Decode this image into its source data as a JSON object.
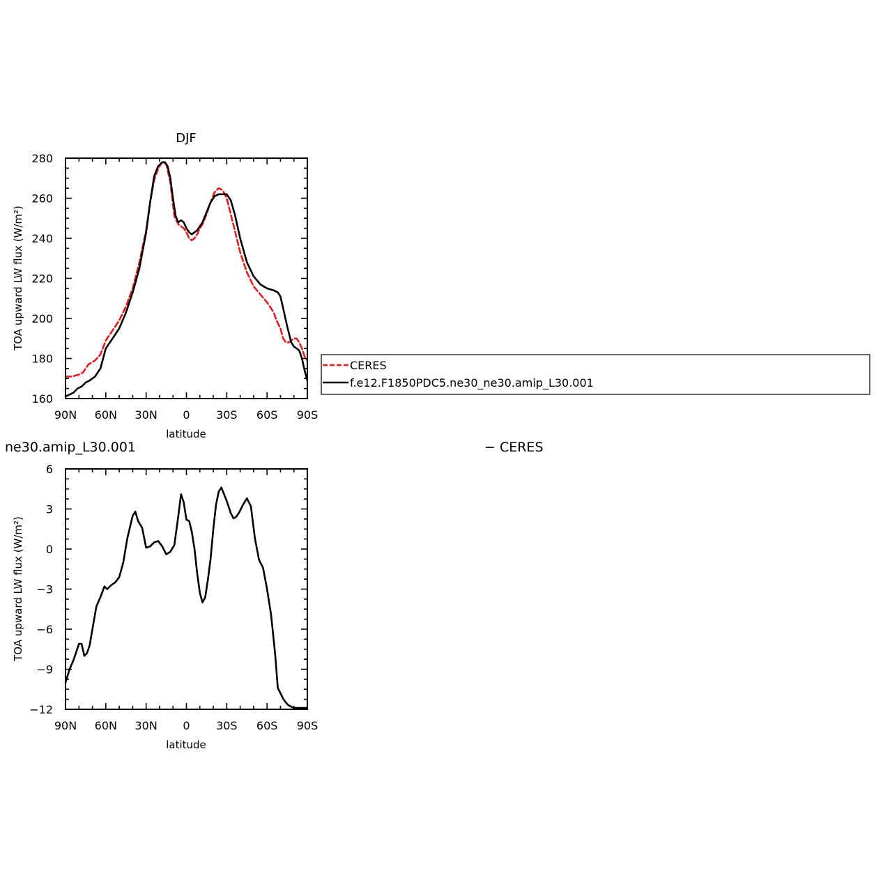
{
  "colors": {
    "ceres": "#e41a1c",
    "model": "#000000",
    "axis": "#000000",
    "background": "#ffffff"
  },
  "legend": {
    "entries": [
      {
        "label": "CERES",
        "style": "dashed",
        "color": "#e41a1c"
      },
      {
        "label": "f.e12.F1850PDC5.ne30_ne30.amip_L30.001",
        "style": "solid",
        "color": "#000000"
      }
    ]
  },
  "chart_data": [
    {
      "type": "line",
      "title": "DJF",
      "xlabel": "latitude",
      "ylabel": "TOA upward LW flux (W/m²)",
      "xlim": [
        90,
        -90
      ],
      "ylim": [
        160,
        280
      ],
      "xticks": [
        90,
        60,
        30,
        0,
        -30,
        -60,
        -90
      ],
      "xtick_labels": [
        "90N",
        "60N",
        "30N",
        "0",
        "30S",
        "60S",
        "90S"
      ],
      "yticks": [
        160,
        180,
        200,
        220,
        240,
        260,
        280
      ],
      "ytick_labels": [
        "160",
        "180",
        "200",
        "220",
        "240",
        "260",
        "280"
      ],
      "grid": false,
      "legend_position": "right",
      "series": [
        {
          "name": "CERES",
          "style": "dashed",
          "color": "#e41a1c",
          "x": [
            90,
            85,
            80,
            77,
            73,
            68,
            64,
            60,
            55,
            50,
            45,
            40,
            35,
            30,
            27,
            24,
            21,
            18,
            15,
            12,
            9,
            6,
            4,
            2,
            0,
            -2,
            -4,
            -6,
            -8,
            -10,
            -12,
            -15,
            -18,
            -21,
            -24,
            -27,
            -30,
            -33,
            -36,
            -40,
            -45,
            -50,
            -55,
            -60,
            -65,
            -67,
            -70,
            -72,
            -74,
            -76,
            -78,
            -80,
            -82,
            -84,
            -86,
            -88,
            -90
          ],
          "y": [
            171,
            171,
            172,
            173,
            177,
            179,
            182,
            189,
            194,
            199,
            206,
            215,
            228,
            244,
            258,
            269,
            275,
            278,
            277,
            268,
            251,
            247,
            246,
            245,
            243,
            240,
            239,
            240,
            242,
            245,
            247,
            252,
            258,
            263,
            265,
            264,
            260,
            252,
            244,
            233,
            223,
            216,
            212,
            208,
            203,
            199,
            195,
            190,
            188,
            188,
            189,
            190,
            190,
            188,
            185,
            181,
            179
          ]
        },
        {
          "name": "f.e12.F1850PDC5.ne30_ne30.amip_L30.001",
          "style": "solid",
          "color": "#000000",
          "x": [
            90,
            87,
            84,
            81,
            78,
            75,
            72,
            68,
            64,
            60,
            55,
            50,
            45,
            40,
            35,
            30,
            27,
            24,
            21,
            18,
            16,
            14,
            12,
            10,
            8,
            6,
            4,
            2,
            0,
            -2,
            -4,
            -6,
            -8,
            -10,
            -12,
            -15,
            -18,
            -21,
            -24,
            -27,
            -30,
            -33,
            -36,
            -40,
            -45,
            -50,
            -55,
            -60,
            -65,
            -68,
            -70,
            -72,
            -75,
            -78,
            -80,
            -82,
            -84,
            -86,
            -88,
            -90
          ],
          "y": [
            161,
            162,
            163,
            165,
            166,
            168,
            169,
            171,
            175,
            185,
            190,
            195,
            203,
            213,
            225,
            243,
            258,
            271,
            276,
            278,
            278,
            276,
            270,
            260,
            251,
            248,
            249,
            248,
            245,
            243,
            242,
            243,
            244,
            246,
            248,
            253,
            258,
            261,
            262,
            262,
            262,
            259,
            252,
            240,
            228,
            221,
            217,
            215,
            214,
            213,
            211,
            205,
            196,
            188,
            186,
            185,
            184,
            180,
            174,
            169
          ]
        }
      ]
    },
    {
      "type": "line",
      "title": "ne30.amip_L30.001",
      "subtitle": "− CERES",
      "xlabel": "latitude",
      "ylabel": "TOA upward LW flux (W/m²)",
      "xlim": [
        90,
        -90
      ],
      "ylim": [
        -12,
        6
      ],
      "xticks": [
        90,
        60,
        30,
        0,
        -30,
        -60,
        -90
      ],
      "xtick_labels": [
        "90N",
        "60N",
        "30N",
        "0",
        "30S",
        "60S",
        "90S"
      ],
      "yticks": [
        -12,
        -9,
        -6,
        -3,
        0,
        3,
        6
      ],
      "ytick_labels": [
        "−12",
        "−9",
        "−6",
        "−3",
        "0",
        "3",
        "6"
      ],
      "grid": false,
      "series": [
        {
          "name": "",
          "style": "solid",
          "color": "#000000",
          "x": [
            90,
            87,
            84,
            80,
            78,
            76,
            74,
            72,
            70,
            67,
            64,
            61,
            59,
            56,
            53,
            50,
            47,
            44,
            40,
            38,
            36,
            33,
            30,
            27,
            24,
            21,
            18,
            15,
            12,
            9,
            6,
            4,
            2,
            0,
            -2,
            -4,
            -6,
            -8,
            -10,
            -12,
            -14,
            -16,
            -18,
            -20,
            -22,
            -24,
            -26,
            -28,
            -30,
            -33,
            -35,
            -37,
            -39,
            -42,
            -45,
            -48,
            -51,
            -54,
            -57,
            -60,
            -63,
            -66,
            -68,
            -70,
            -72,
            -74,
            -76,
            -78,
            -80,
            -82,
            -84,
            -86,
            -88,
            -90
          ],
          "y": [
            -10,
            -9,
            -8.3,
            -7.1,
            -7.1,
            -8,
            -7.8,
            -7.2,
            -6,
            -4.3,
            -3.6,
            -2.8,
            -3,
            -2.7,
            -2.5,
            -2.1,
            -1,
            0.8,
            2.5,
            2.8,
            2.1,
            1.6,
            0.1,
            0.2,
            0.5,
            0.6,
            0.2,
            -0.4,
            -0.2,
            0.3,
            2.5,
            4.1,
            3.5,
            2.2,
            2.1,
            1.3,
            0,
            -1.8,
            -3.3,
            -4,
            -3.6,
            -2.3,
            -0.7,
            1.5,
            3.3,
            4.3,
            4.6,
            4.1,
            3.6,
            2.7,
            2.3,
            2.4,
            2.7,
            3.3,
            3.8,
            3.2,
            0.8,
            -0.8,
            -1.4,
            -3,
            -4.9,
            -7.8,
            -10.4,
            -10.8,
            -11.2,
            -11.5,
            -11.7,
            -11.8,
            -11.9,
            -11.9,
            -11.9,
            -11.9,
            -11.9,
            -11.9
          ]
        }
      ]
    }
  ]
}
